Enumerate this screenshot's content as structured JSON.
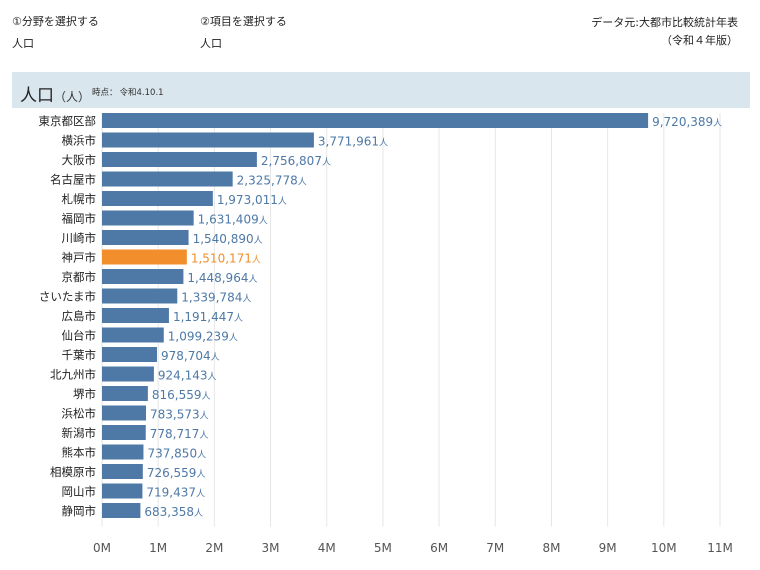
{
  "selectors": [
    {
      "label": "①分野を選択する",
      "value": "人口"
    },
    {
      "label": "②項目を選択する",
      "value": "人口"
    }
  ],
  "source": {
    "line1": "データ元:大都市比較統計年表",
    "line2": "（令和４年版）"
  },
  "header": {
    "title": "人口",
    "unit": "（人）",
    "asof_label": "時点：",
    "asof_value": "令和4.10.1"
  },
  "colors": {
    "bar": "#4e79a7",
    "highlight": "#f28e2b",
    "band": "#d9e6ee",
    "value_text": "#4e79a7"
  },
  "chart_data": {
    "type": "bar",
    "orientation": "horizontal",
    "categories": [
      "東京都区部",
      "横浜市",
      "大阪市",
      "名古屋市",
      "札幌市",
      "福岡市",
      "川崎市",
      "神戸市",
      "京都市",
      "さいたま市",
      "広島市",
      "仙台市",
      "千葉市",
      "北九州市",
      "堺市",
      "浜松市",
      "新潟市",
      "熊本市",
      "相模原市",
      "岡山市",
      "静岡市"
    ],
    "values": [
      9720389,
      3771961,
      2756807,
      2325778,
      1973011,
      1631409,
      1540890,
      1510171,
      1448964,
      1339784,
      1191447,
      1099239,
      978704,
      924143,
      816559,
      783573,
      778717,
      737850,
      726559,
      719437,
      683358
    ],
    "value_labels": [
      "9,720,389",
      "3,771,961",
      "2,756,807",
      "2,325,778",
      "1,973,011",
      "1,631,409",
      "1,540,890",
      "1,510,171",
      "1,448,964",
      "1,339,784",
      "1,191,447",
      "1,099,239",
      "978,704",
      "924,143",
      "816,559",
      "783,573",
      "778,717",
      "737,850",
      "726,559",
      "719,437",
      "683,358"
    ],
    "value_suffix": "人",
    "highlight_category": "神戸市",
    "xlim": [
      0,
      11000000
    ],
    "xticks": [
      0,
      1000000,
      2000000,
      3000000,
      4000000,
      5000000,
      6000000,
      7000000,
      8000000,
      9000000,
      10000000,
      11000000
    ],
    "xtick_labels": [
      "0M",
      "1M",
      "2M",
      "3M",
      "4M",
      "5M",
      "6M",
      "7M",
      "8M",
      "9M",
      "10M",
      "11M"
    ],
    "grid": true
  }
}
